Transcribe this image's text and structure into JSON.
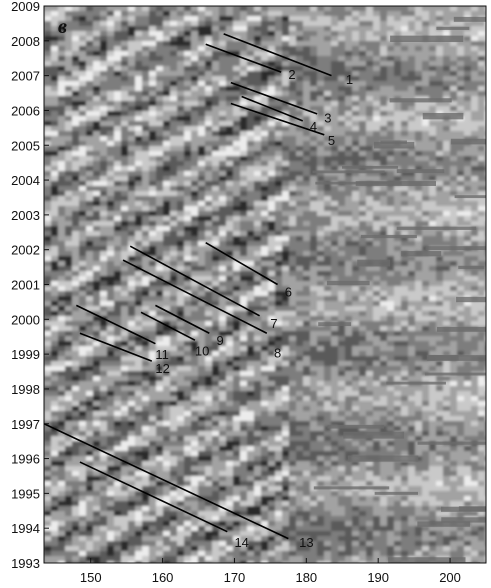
{
  "chart_data": {
    "type": "heatmap",
    "panel_letter": "в",
    "xlabel": "",
    "ylabel": "",
    "xlim": [
      143.5,
      205
    ],
    "ylim": [
      1993,
      2009
    ],
    "x_ticks": [
      "150",
      "160",
      "170",
      "180",
      "190",
      "200"
    ],
    "x_tick_values": [
      150,
      160,
      170,
      180,
      190,
      200
    ],
    "y_ticks": [
      "1993",
      "1994",
      "1995",
      "1996",
      "1997",
      "1998",
      "1999",
      "2000",
      "2001",
      "2002",
      "2003",
      "2004",
      "2005",
      "2006",
      "2007",
      "2008",
      "2009"
    ],
    "y_tick_values": [
      1993,
      1994,
      1995,
      1996,
      1997,
      1998,
      1999,
      2000,
      2001,
      2002,
      2003,
      2004,
      2005,
      2006,
      2007,
      2008,
      2009
    ],
    "palette": [
      "#2b2b2b",
      "#5a5a5a",
      "#7d7d7d",
      "#a2a2a2",
      "#c9c9c9",
      "#ececec"
    ],
    "background_gray": "#7a7a7a",
    "line_color": "#000000",
    "annotated_lines": [
      {
        "label": "1",
        "x1": 168.5,
        "y1": 2008.2,
        "x2": 183.5,
        "y2": 2007.0,
        "lx": 185.5,
        "ly": 2006.9
      },
      {
        "label": "2",
        "x1": 166.0,
        "y1": 2007.9,
        "x2": 176.5,
        "y2": 2007.1,
        "lx": 177.5,
        "ly": 2007.05
      },
      {
        "label": "3",
        "x1": 169.5,
        "y1": 2006.8,
        "x2": 181.5,
        "y2": 2005.9,
        "lx": 182.5,
        "ly": 2005.8
      },
      {
        "label": "4",
        "x1": 171.0,
        "y1": 2006.4,
        "x2": 179.5,
        "y2": 2005.7,
        "lx": 180.5,
        "ly": 2005.55
      },
      {
        "label": "5",
        "x1": 169.5,
        "y1": 2006.2,
        "x2": 182.5,
        "y2": 2005.3,
        "lx": 183.0,
        "ly": 2005.15
      },
      {
        "label": "6",
        "x1": 166.0,
        "y1": 2002.2,
        "x2": 176.0,
        "y2": 2001.0,
        "lx": 177.0,
        "ly": 2000.8
      },
      {
        "label": "7",
        "x1": 155.5,
        "y1": 2002.1,
        "x2": 173.5,
        "y2": 2000.1,
        "lx": 175.0,
        "ly": 1999.9
      },
      {
        "label": "8",
        "x1": 154.5,
        "y1": 2001.7,
        "x2": 174.5,
        "y2": 1999.6,
        "lx": 175.5,
        "ly": 1999.05
      },
      {
        "label": "9",
        "x1": 159.0,
        "y1": 2000.4,
        "x2": 166.5,
        "y2": 1999.6,
        "lx": 167.5,
        "ly": 1999.4
      },
      {
        "label": "10",
        "x1": 157.0,
        "y1": 2000.2,
        "x2": 164.5,
        "y2": 1999.4,
        "lx": 164.5,
        "ly": 1999.1
      },
      {
        "label": "11",
        "x1": 148.0,
        "y1": 2000.4,
        "x2": 159.0,
        "y2": 1999.3,
        "lx": 159.0,
        "ly": 1999.0
      },
      {
        "label": "12",
        "x1": 148.5,
        "y1": 1999.6,
        "x2": 158.5,
        "y2": 1998.8,
        "lx": 159.0,
        "ly": 1998.6
      },
      {
        "label": "13",
        "x1": 143.5,
        "y1": 1997.0,
        "x2": 177.5,
        "y2": 1993.7,
        "lx": 179.0,
        "ly": 1993.6
      },
      {
        "label": "14",
        "x1": 148.5,
        "y1": 1995.9,
        "x2": 169.0,
        "y2": 1993.9,
        "lx": 170.0,
        "ly": 1993.6
      }
    ]
  }
}
